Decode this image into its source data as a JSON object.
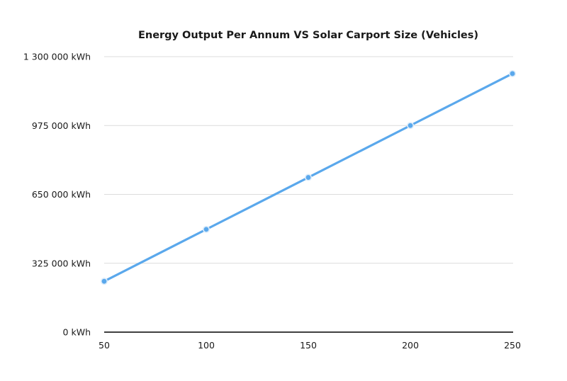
{
  "chart_data": {
    "type": "line",
    "title": "Energy Output Per Annum VS Solar Carport Size (Vehicles)",
    "xlabel": "",
    "ylabel": "",
    "x": [
      50,
      100,
      150,
      200,
      250
    ],
    "x_ticks": [
      "50",
      "100",
      "150",
      "200",
      "250"
    ],
    "y_ticks": [
      {
        "value": 0,
        "label": "0 kWh"
      },
      {
        "value": 325000,
        "label": "325 000 kWh"
      },
      {
        "value": 650000,
        "label": "650 000 kWh"
      },
      {
        "value": 975000,
        "label": "975 000 kWh"
      },
      {
        "value": 1300000,
        "label": "1 300 000 kWh"
      }
    ],
    "ylim": [
      0,
      1300000
    ],
    "xlim": [
      50,
      250
    ],
    "grid": "horizontal",
    "legend": "none",
    "series": [
      {
        "values": [
          240000,
          485000,
          730000,
          975000,
          1220000
        ],
        "color": "#5aa8ec"
      }
    ]
  }
}
